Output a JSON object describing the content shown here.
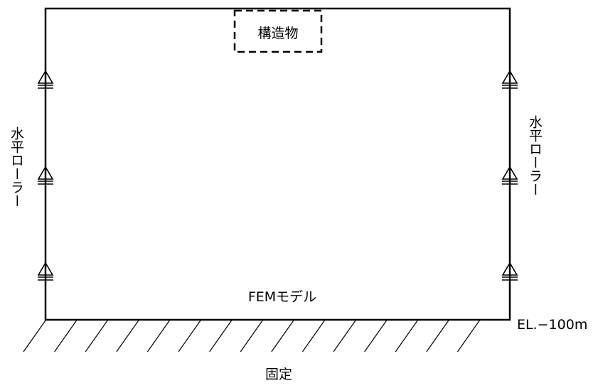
{
  "diagram": {
    "structure_label": "構造物",
    "model_label": "FEMモデル",
    "left_boundary_label": "水平ローラー",
    "right_boundary_label": "水平ローラー",
    "bottom_elevation_label": "EL.−100m",
    "bottom_condition_label": "固定",
    "roller_supports_per_side": 3,
    "hatch_lines": 15
  }
}
